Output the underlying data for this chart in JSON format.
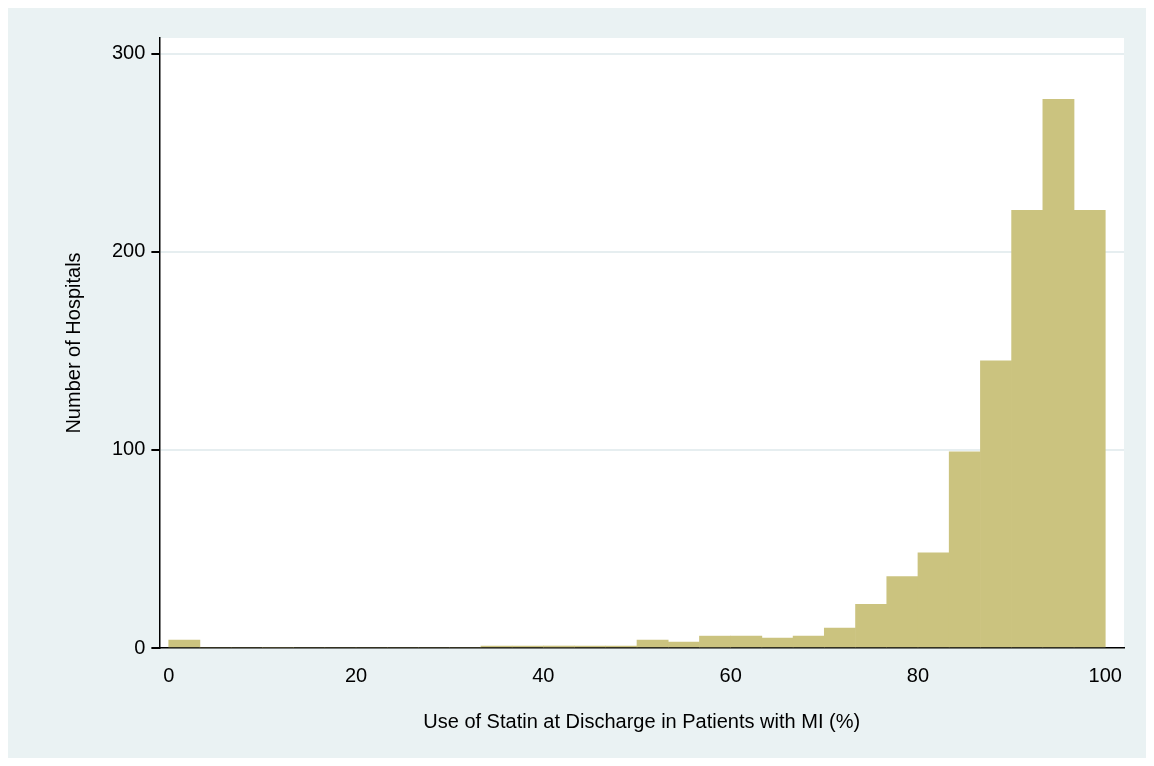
{
  "chart_data": {
    "type": "histogram",
    "xlabel": "Use of Statin at Discharge in Patients with MI (%)",
    "ylabel": "Number of Hospitals",
    "bins": [
      0,
      3.33,
      6.67,
      10,
      13.33,
      16.67,
      20,
      23.33,
      26.67,
      30,
      33.33,
      36.67,
      40,
      43.33,
      46.67,
      50,
      53.33,
      56.67,
      60,
      63.33,
      66.67,
      70,
      73.33,
      76.67,
      80,
      83.33,
      86.67,
      90,
      93.33,
      96.67,
      100
    ],
    "values": [
      4,
      0,
      0,
      0,
      0,
      0,
      0,
      0,
      0,
      0,
      1,
      1,
      1,
      1,
      1,
      4,
      3,
      6,
      6,
      5,
      6,
      10,
      22,
      36,
      48,
      99,
      145,
      221,
      277,
      221
    ],
    "color": "#cbc37f",
    "xlim": [
      -1,
      102
    ],
    "ylim": [
      0,
      308
    ],
    "xticks": [
      0,
      20,
      40,
      60,
      80,
      100
    ],
    "yticks": [
      0,
      100,
      200,
      300
    ],
    "grid": "y"
  }
}
